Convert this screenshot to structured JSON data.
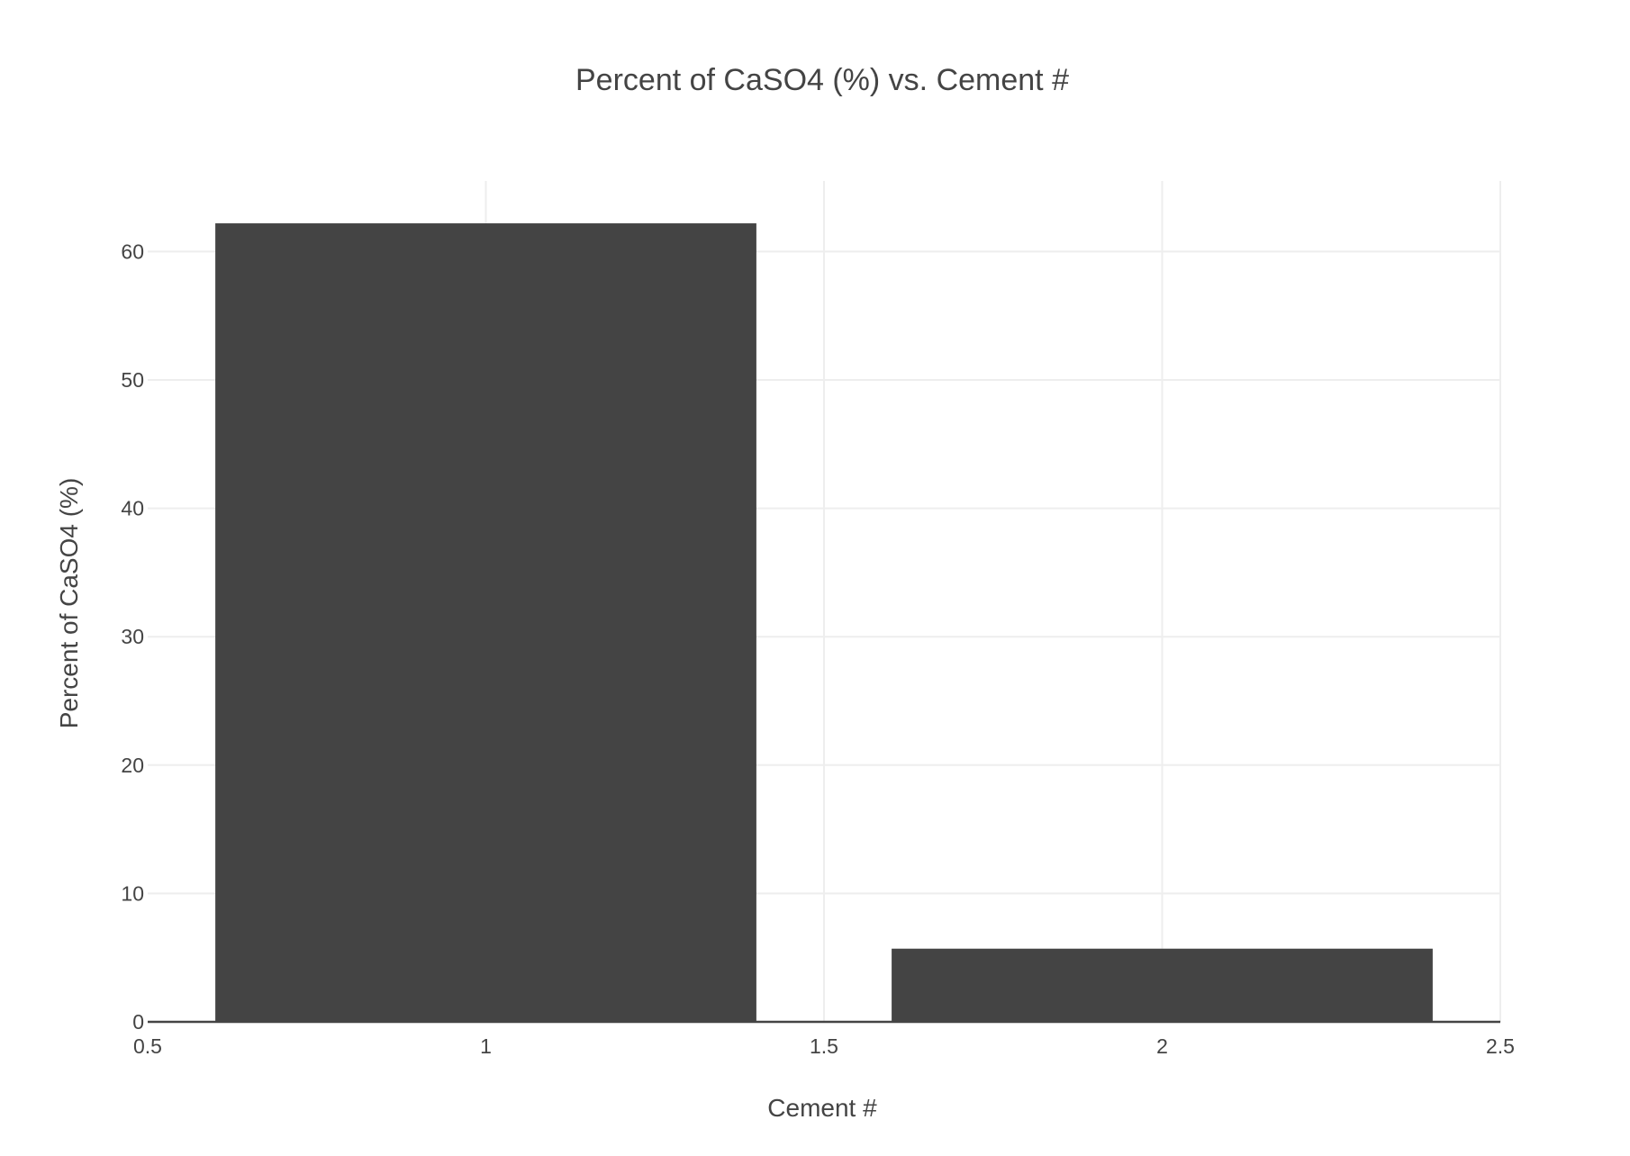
{
  "chart_data": {
    "type": "bar",
    "title": "Percent of CaSO4 (%) vs. Cement #",
    "xlabel": "Cement #",
    "ylabel": "Percent of CaSO4 (%)",
    "x": [
      1,
      2
    ],
    "values": [
      62.2,
      5.7
    ],
    "bar_width": 0.8,
    "xlim": [
      0.5,
      2.5
    ],
    "ylim": [
      0,
      65.5
    ],
    "x_ticks": [
      0.5,
      1,
      1.5,
      2,
      2.5
    ],
    "x_tick_labels": [
      "0.5",
      "1",
      "1.5",
      "2",
      "2.5"
    ],
    "y_ticks": [
      0,
      10,
      20,
      30,
      40,
      50,
      60
    ],
    "y_tick_labels": [
      "0",
      "10",
      "20",
      "30",
      "40",
      "50",
      "60"
    ],
    "grid": true,
    "bar_color": "#444444"
  }
}
